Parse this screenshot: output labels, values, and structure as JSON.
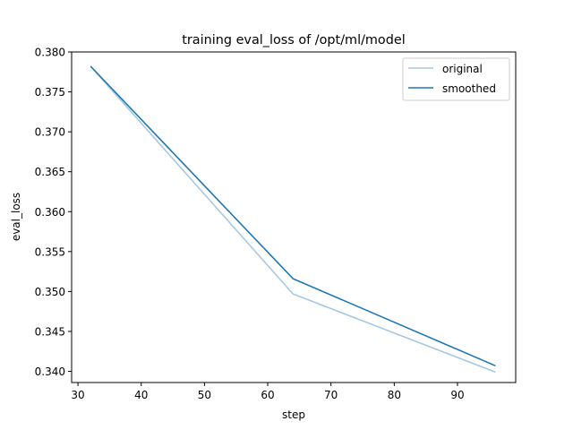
{
  "chart_data": {
    "type": "line",
    "title": "training eval_loss of /opt/ml/model",
    "xlabel": "step",
    "ylabel": "eval_loss",
    "xlim": [
      29,
      99.2
    ],
    "ylim": [
      0.3386,
      0.38
    ],
    "xticks": [
      30,
      40,
      50,
      60,
      70,
      80,
      90
    ],
    "yticks": [
      0.34,
      0.345,
      0.35,
      0.355,
      0.36,
      0.365,
      0.37,
      0.375,
      0.38
    ],
    "ytick_labels": [
      "0.340",
      "0.345",
      "0.350",
      "0.355",
      "0.360",
      "0.365",
      "0.370",
      "0.375",
      "0.380"
    ],
    "grid": false,
    "legend_position": "top-right",
    "series": [
      {
        "name": "original",
        "color": "#a6c8e0",
        "x": [
          32,
          64,
          96
        ],
        "y": [
          0.3782,
          0.3497,
          0.3399
        ]
      },
      {
        "name": "smoothed",
        "color": "#1f77b4",
        "x": [
          32,
          64,
          96
        ],
        "y": [
          0.3782,
          0.3516,
          0.3407
        ]
      }
    ]
  }
}
